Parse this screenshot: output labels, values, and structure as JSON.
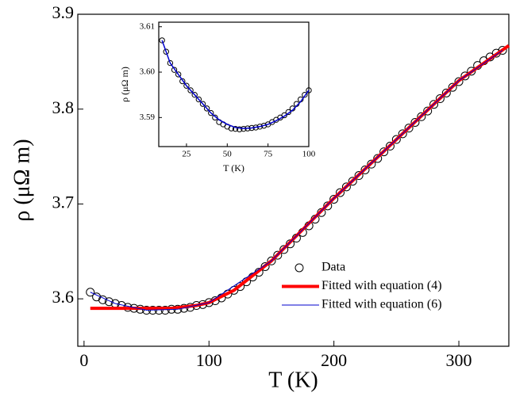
{
  "chart_data": [
    {
      "type": "scatter",
      "xlabel": "T (K)",
      "ylabel": "ρ (μΩ m)",
      "xlim": [
        -5,
        340
      ],
      "ylim": [
        3.55,
        3.9
      ],
      "xticks": [
        0,
        100,
        200,
        300
      ],
      "yticks": [
        3.6,
        3.7,
        3.8,
        3.9
      ],
      "legend": "lower right",
      "series": [
        {
          "name": "Data",
          "marker": "circle",
          "color": "#000000",
          "x": [
            5,
            10,
            15,
            20,
            25,
            30,
            35,
            40,
            45,
            50,
            55,
            60,
            65,
            70,
            75,
            80,
            85,
            90,
            95,
            100,
            105,
            110,
            115,
            120,
            125,
            130,
            135,
            140,
            145,
            150,
            155,
            160,
            165,
            170,
            175,
            180,
            185,
            190,
            195,
            200,
            205,
            210,
            215,
            220,
            225,
            230,
            235,
            240,
            245,
            250,
            255,
            260,
            265,
            270,
            275,
            280,
            285,
            290,
            295,
            300,
            305,
            310,
            315,
            320,
            325,
            330,
            335
          ],
          "values": [
            3.607,
            3.602,
            3.599,
            3.597,
            3.595,
            3.593,
            3.591,
            3.59,
            3.589,
            3.588,
            3.588,
            3.588,
            3.588,
            3.589,
            3.589,
            3.59,
            3.591,
            3.593,
            3.594,
            3.596,
            3.598,
            3.601,
            3.605,
            3.609,
            3.613,
            3.618,
            3.623,
            3.628,
            3.634,
            3.64,
            3.646,
            3.652,
            3.658,
            3.664,
            3.67,
            3.677,
            3.684,
            3.691,
            3.698,
            3.705,
            3.712,
            3.718,
            3.724,
            3.73,
            3.736,
            3.742,
            3.748,
            3.755,
            3.761,
            3.768,
            3.774,
            3.78,
            3.786,
            3.792,
            3.798,
            3.805,
            3.811,
            3.817,
            3.823,
            3.829,
            3.835,
            3.84,
            3.846,
            3.851,
            3.855,
            3.859,
            3.862
          ]
        },
        {
          "name": "Fitted with equation (4)",
          "marker": "line",
          "color": "#ff0000",
          "width": 4,
          "x": [
            5,
            50,
            70,
            90,
            100,
            120,
            150,
            200,
            250,
            300,
            340
          ],
          "values": [
            3.59,
            3.59,
            3.59,
            3.593,
            3.596,
            3.609,
            3.64,
            3.706,
            3.768,
            3.83,
            3.867
          ]
        },
        {
          "name": "Fitted with equation (6)",
          "marker": "line",
          "color": "#0000cc",
          "width": 1,
          "x": [
            5,
            25,
            50,
            75,
            100,
            150,
            200,
            250,
            300,
            335
          ],
          "values": [
            3.607,
            3.595,
            3.588,
            3.589,
            3.596,
            3.64,
            3.706,
            3.768,
            3.83,
            3.862
          ]
        }
      ]
    },
    {
      "type": "scatter",
      "xlabel": "T (K)",
      "ylabel": "ρ (μΩ m)",
      "xlim": [
        8,
        100
      ],
      "ylim": [
        3.5836,
        3.611
      ],
      "xticks": [
        25,
        50,
        75,
        100
      ],
      "yticks": [
        3.59,
        {
          "value": 3.6,
          "label": "3.60"
        },
        3.61
      ],
      "series": [
        {
          "marker": "circle",
          "color": "#000000",
          "x": [
            10,
            12.5,
            15,
            17.5,
            20,
            22.5,
            25,
            27.5,
            30,
            32.5,
            35,
            37.5,
            40,
            42.5,
            45,
            47.5,
            50,
            52.5,
            55,
            57.5,
            60,
            62.5,
            65,
            67.5,
            70,
            72.5,
            75,
            77.5,
            80,
            82.5,
            85,
            87.5,
            90,
            92.5,
            95,
            97.5,
            100
          ],
          "values": [
            3.607,
            3.6045,
            3.602,
            3.6005,
            3.5995,
            3.598,
            3.597,
            3.596,
            3.595,
            3.594,
            3.593,
            3.592,
            3.591,
            3.59,
            3.589,
            3.5885,
            3.588,
            3.5876,
            3.5875,
            3.5874,
            3.5875,
            3.5876,
            3.5877,
            3.5878,
            3.588,
            3.5882,
            3.5885,
            3.589,
            3.5895,
            3.59,
            3.5905,
            3.5912,
            3.592,
            3.593,
            3.594,
            3.595,
            3.596
          ]
        },
        {
          "marker": "line",
          "color": "#0000cc",
          "width": 1.5,
          "x": [
            10,
            15,
            20,
            25,
            30,
            35,
            40,
            45,
            50,
            55,
            60,
            65,
            70,
            75,
            80,
            85,
            90,
            95,
            100
          ],
          "values": [
            3.607,
            3.602,
            3.5995,
            3.597,
            3.595,
            3.593,
            3.591,
            3.5895,
            3.5885,
            3.5878,
            3.5876,
            3.5877,
            3.588,
            3.5885,
            3.5893,
            3.5903,
            3.5916,
            3.5935,
            3.596
          ]
        }
      ]
    }
  ]
}
